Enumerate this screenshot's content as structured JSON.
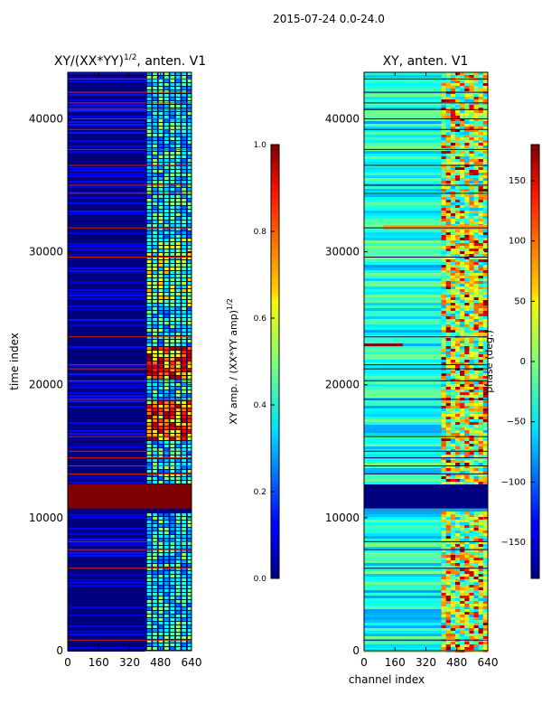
{
  "suptitle": "2015-07-24 0.0-24.0",
  "colors": {
    "bg": "#00007f",
    "band": "#7f0000",
    "line_left": "#cc2200",
    "line_right": "#0a0a40"
  },
  "chart_data": [
    {
      "type": "heatmap",
      "title_main": "XY/(XX*YY)",
      "title_exp": "1/2",
      "title_tail": ", anten. V1",
      "xlabel": "",
      "ylabel": "time index",
      "xlim": [
        0,
        640
      ],
      "ylim": [
        0,
        43500
      ],
      "xticks": [
        0,
        160,
        320,
        480,
        640
      ],
      "yticks": [
        0,
        10000,
        20000,
        30000,
        40000
      ],
      "active_channels": [
        400,
        640
      ],
      "flagged_band": [
        10700,
        12500
      ],
      "horizontal_flag_lines": [
        800,
        6200,
        7600,
        8200,
        13300,
        13900,
        14500,
        15000,
        16100,
        18900,
        20300,
        21200,
        21500,
        23600,
        29600,
        31800,
        34400,
        35000,
        36500,
        37700,
        39200,
        40000,
        40700,
        41200,
        42000,
        43000
      ],
      "colorbar": {
        "label_main": "XY amp. / (XX*YY amp)",
        "label_exp": "1/2",
        "min": 0.0,
        "max": 1.0,
        "ticks": [
          "0.0",
          "0.2",
          "0.4",
          "0.6",
          "0.8",
          "1.0"
        ]
      }
    },
    {
      "type": "heatmap",
      "title": "XY, anten. V1",
      "xlabel": "channel index",
      "ylabel": "",
      "xlim": [
        0,
        640
      ],
      "ylim": [
        0,
        43500
      ],
      "xticks": [
        0,
        160,
        320,
        480,
        640
      ],
      "yticks": [
        0,
        10000,
        20000,
        30000,
        40000
      ],
      "flagged_band": [
        10700,
        12500
      ],
      "colorbar": {
        "label": "phase (deg.)",
        "min": -180,
        "max": 180,
        "ticks": [
          "−150",
          "−100",
          "−50",
          "0",
          "50",
          "100",
          "150"
        ]
      }
    }
  ]
}
